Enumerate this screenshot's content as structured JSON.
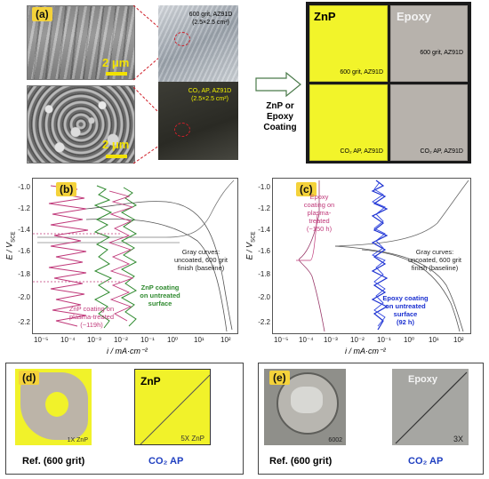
{
  "panel_a": {
    "tag": "(a)",
    "scale_top": "2 μm",
    "scale_bottom": "2 μm",
    "plate_top_label": "600 grit, AZ91D",
    "plate_top_size": "(2.5×2.5 cm²)",
    "plate_bottom_label": "CO₂ AP, AZ91D",
    "plate_bottom_size": "(2.5×2.5 cm²)"
  },
  "arrow_text": {
    "line1": "ZnP or",
    "line2": "Epoxy",
    "line3": "Coating"
  },
  "coated": {
    "znp_label": "ZnP",
    "epoxy_label": "Epoxy",
    "tl_sub": "600 grit, AZ91D",
    "tr_sub": "600 grit, AZ91D",
    "bl_sub": "CO₂ AP, AZ91D",
    "br_sub": "CO₂ AP, AZ91D"
  },
  "panel_b": {
    "tag": "(b)",
    "ylabel": "E / V",
    "ylabel_sub": "SCE",
    "xlabel": "i / mA·cm⁻²",
    "yticks": [
      "-1.0",
      "-1.2",
      "-1.4",
      "-1.6",
      "-1.8",
      "-2.0",
      "-2.2"
    ],
    "xticks": [
      "10⁻⁵",
      "10⁻⁴",
      "10⁻³",
      "10⁻²",
      "10⁻¹",
      "10⁰",
      "10¹",
      "10²"
    ],
    "anno_gray": [
      "Gray curves:",
      "uncoated, 600 grit",
      "finish (baseline)"
    ],
    "anno_green": [
      "ZnP coating",
      "on untreated",
      "surface"
    ],
    "anno_pink": [
      "ZnP coating on",
      "plasma-treated",
      "(~119h)"
    ]
  },
  "panel_c": {
    "tag": "(c)",
    "ylabel": "E / V",
    "ylabel_sub": "SCE",
    "xlabel": "i / mA·cm⁻²",
    "yticks": [
      "-1.0",
      "-1.2",
      "-1.4",
      "-1.6",
      "-1.8",
      "-2.0",
      "-2.2"
    ],
    "xticks": [
      "10⁻⁵",
      "10⁻⁴",
      "10⁻³",
      "10⁻²",
      "10⁻¹",
      "10⁰",
      "10¹",
      "10²"
    ],
    "anno_pink": [
      "Epoxy",
      "coating on",
      "plasma-",
      "treated",
      "(~150 h)"
    ],
    "anno_gray": [
      "Gray curves:",
      "uncoated, 600 grit",
      "finish (baseline)"
    ],
    "anno_blue": [
      "Epoxy coating",
      "on untreated",
      "surface",
      "(92 h)"
    ]
  },
  "panel_d": {
    "tag": "(d)",
    "photo2_label": "ZnP",
    "photo1_mark": "1X ZnP",
    "photo2_mark": "5X ZnP",
    "cap_left": "Ref. (600 grit)",
    "cap_right": "CO₂ AP"
  },
  "panel_e": {
    "tag": "(e)",
    "photo1_mark": "6002",
    "photo2_label": "Epoxy",
    "photo2_mark": "3X",
    "cap_left": "Ref. (600 grit)",
    "cap_right": "CO₂ AP"
  },
  "colors": {
    "yellow": "#f2f42a",
    "pink": "#c0397a",
    "green": "#2f8a2f",
    "blue": "#1a2fd0",
    "caption_blue": "#1f3fc0"
  }
}
